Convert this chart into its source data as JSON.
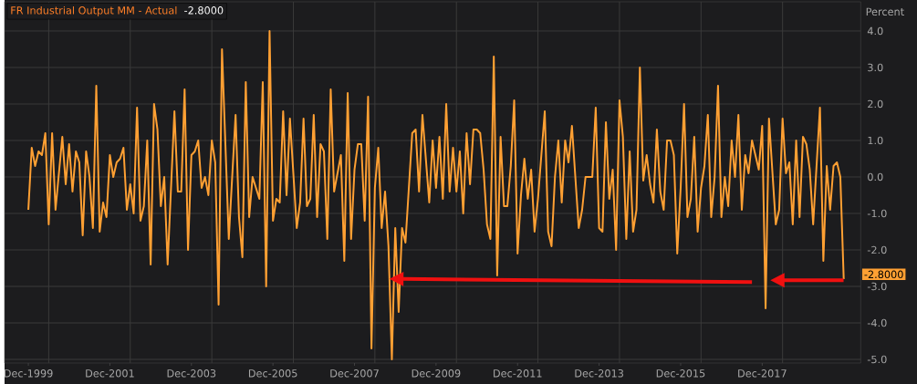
{
  "chart_data": {
    "type": "line",
    "title": "FR Industrial Output MM - Actual",
    "ylabel": "Percent",
    "color": "#ffa033",
    "x": [
      "1999-12",
      "2000-01",
      "2000-02",
      "2000-03",
      "2000-04",
      "2000-05",
      "2000-06",
      "2000-07",
      "2000-08",
      "2000-10",
      "2000-11",
      "2000-12",
      "2001-01",
      "2001-02",
      "2001-03",
      "2001-04",
      "2001-05",
      "2001-06",
      "2001-07",
      "2001-08",
      "2001-09",
      "2001-10",
      "2001-11",
      "2001-12",
      "2002-01",
      "2002-02",
      "2002-03",
      "2002-04",
      "2002-05",
      "2002-06",
      "2002-07",
      "2002-08",
      "2002-09",
      "2002-10",
      "2002-11",
      "2002-12",
      "2003-01",
      "2003-02",
      "2003-03",
      "2003-04",
      "2003-05",
      "2003-07",
      "2003-08",
      "2003-09",
      "2003-10",
      "2003-11",
      "2003-12",
      "2004-01",
      "2004-02",
      "2004-03",
      "2004-04",
      "2004-05",
      "2004-06",
      "2004-07",
      "2004-08",
      "2004-09",
      "2004-11",
      "2005-01",
      "2005-02",
      "2005-03",
      "2005-04",
      "2005-05",
      "2005-06",
      "2005-07",
      "2005-08",
      "2005-09",
      "2005-10",
      "2005-11",
      "2005-12",
      "2006-01",
      "2006-02",
      "2006-03",
      "2006-04",
      "2006-05",
      "2006-07",
      "2006-08",
      "2006-09",
      "2006-10",
      "2006-11",
      "2006-12",
      "2007-01",
      "2007-02",
      "2007-03",
      "2007-04",
      "2007-05",
      "2007-06",
      "2007-08",
      "2007-09",
      "2007-10",
      "2007-11",
      "2007-12",
      "2008-01",
      "2008-02",
      "2008-03",
      "2008-04",
      "2008-05",
      "2008-06",
      "2008-07",
      "2008-08",
      "2008-09",
      "2008-10",
      "2008-11",
      "2008-12",
      "2009-01",
      "2009-02",
      "2009-03",
      "2009-05",
      "2009-06",
      "2009-07",
      "2009-08",
      "2009-10",
      "2009-11",
      "2009-12",
      "2010-01",
      "2010-02",
      "2010-03",
      "2010-04",
      "2010-05",
      "2010-06",
      "2010-07",
      "2010-08",
      "2010-09",
      "2010-10",
      "2010-11",
      "2010-12",
      "2011-01",
      "2011-02",
      "2011-03",
      "2011-04",
      "2011-05",
      "2011-06",
      "2011-07",
      "2011-08",
      "2011-09",
      "2011-10",
      "2011-11",
      "2011-12",
      "2012-01",
      "2012-02",
      "2012-03",
      "2012-04",
      "2012-05",
      "2012-06",
      "2012-08",
      "2012-09",
      "2012-10",
      "2012-11",
      "2012-12",
      "2013-01",
      "2013-02",
      "2013-03",
      "2013-04",
      "2013-06",
      "2013-07",
      "2013-08",
      "2013-09",
      "2013-10",
      "2013-11",
      "2013-12",
      "2014-01",
      "2014-02",
      "2014-03",
      "2014-04",
      "2014-05",
      "2014-06",
      "2014-07",
      "2014-08",
      "2014-09",
      "2014-10",
      "2014-11",
      "2014-12",
      "2015-01",
      "2015-02",
      "2015-03",
      "2015-04",
      "2015-05",
      "2015-06",
      "2015-07",
      "2015-08",
      "2015-09",
      "2015-10",
      "2015-11",
      "2015-12",
      "2016-01",
      "2016-02",
      "2016-03",
      "2016-04",
      "2016-05",
      "2016-06",
      "2016-07",
      "2016-08",
      "2016-09",
      "2016-10",
      "2016-11",
      "2016-12",
      "2017-01",
      "2017-02",
      "2017-03",
      "2017-04",
      "2017-05",
      "2017-06",
      "2017-07",
      "2017-08",
      "2017-09",
      "2017-10",
      "2017-11",
      "2017-12",
      "2018-01",
      "2018-02",
      "2018-04",
      "2018-05",
      "2018-06",
      "2018-07",
      "2018-08",
      "2018-09",
      "2018-10",
      "2018-11",
      "2018-12",
      "2019-01",
      "2019-02",
      "2019-03",
      "2019-05",
      "2019-06",
      "2019-07",
      "2019-08",
      "2019-09",
      "2019-10",
      "2019-11",
      "2019-12"
    ],
    "values": [
      -0.9,
      0.8,
      0.3,
      0.7,
      0.6,
      1.2,
      -1.3,
      1.2,
      -0.9,
      1.1,
      -0.2,
      0.9,
      -0.4,
      0.7,
      0.4,
      -1.6,
      0.7,
      0.0,
      -1.4,
      2.5,
      -1.5,
      -0.7,
      -1.1,
      0.6,
      0.0,
      0.4,
      0.5,
      0.8,
      -0.9,
      -0.2,
      -1.0,
      1.9,
      -1.2,
      -0.8,
      1.0,
      -2.4,
      2.0,
      1.3,
      -0.8,
      0.0,
      -2.4,
      1.8,
      -0.4,
      -0.4,
      2.4,
      -2.0,
      0.6,
      0.7,
      1.0,
      -0.3,
      0.0,
      -0.5,
      1.0,
      0.4,
      -3.5,
      3.5,
      -1.7,
      1.7,
      -1.1,
      -2.2,
      2.6,
      -1.1,
      0.0,
      -0.3,
      -0.6,
      2.6,
      -3.0,
      4.0,
      -1.2,
      -0.6,
      -0.7,
      1.8,
      -0.5,
      1.6,
      -1.4,
      -0.7,
      1.6,
      -0.8,
      -0.6,
      1.7,
      -1.1,
      0.9,
      0.7,
      -1.7,
      2.4,
      -0.4,
      0.6,
      -2.3,
      2.3,
      -1.7,
      0.2,
      0.9,
      0.9,
      -1.2,
      2.2,
      -4.7,
      -0.3,
      0.8,
      -1.4,
      -0.4,
      -1.9,
      -5.0,
      -1.4,
      -3.7,
      -1.4,
      -1.8,
      1.2,
      1.3,
      -0.4,
      1.7,
      -0.7,
      1.0,
      -0.3,
      1.1,
      -0.6,
      2.0,
      -0.4,
      0.8,
      -0.4,
      0.7,
      -1.0,
      1.2,
      -0.2,
      1.3,
      1.3,
      1.2,
      0.2,
      -1.3,
      -1.7,
      3.3,
      -2.7,
      1.1,
      -0.8,
      -0.8,
      0.3,
      2.1,
      -2.1,
      -0.5,
      0.5,
      -0.6,
      0.2,
      -1.5,
      -0.6,
      1.8,
      -1.5,
      -1.9,
      0.0,
      1.0,
      -0.7,
      1.0,
      0.4,
      1.4,
      -1.4,
      -0.9,
      0.0,
      0.0,
      0.0,
      1.9,
      -1.4,
      -1.5,
      1.5,
      -0.6,
      0.2,
      -2.0,
      2.1,
      1.1,
      -1.7,
      0.7,
      -1.5,
      -0.9,
      3.0,
      -0.1,
      0.6,
      -0.2,
      -0.7,
      1.3,
      -0.4,
      -0.9,
      1.0,
      1.0,
      0.6,
      -2.1,
      -0.3,
      2.0,
      -1.1,
      -0.6,
      1.1,
      -1.5,
      -0.3,
      0.3,
      1.7,
      -1.1,
      0.0,
      2.5,
      -1.1,
      0.0,
      -0.8,
      1.0,
      0.0,
      1.7,
      -0.9,
      0.6,
      0.1,
      1.0,
      0.6,
      0.2,
      1.4,
      -3.6,
      1.6,
      -1.3,
      -0.9,
      1.6,
      0.1,
      0.4,
      -1.3,
      1.0,
      -1.1,
      1.1,
      0.9,
      0.2,
      -1.3,
      1.9,
      -2.3,
      0.3,
      -0.9,
      0.3,
      0.4,
      0.0,
      -2.8
    ],
    "xlim": [
      "1999-05",
      "2020-05"
    ],
    "ylim": [
      -5.1,
      4.8
    ],
    "xticks": [
      {
        "value": "1999-12",
        "label": "Dec-1999"
      },
      {
        "value": "2001-12",
        "label": "Dec-2001"
      },
      {
        "value": "2003-12",
        "label": "Dec-2003"
      },
      {
        "value": "2005-12",
        "label": "Dec-2005"
      },
      {
        "value": "2007-12",
        "label": "Dec-2007"
      },
      {
        "value": "2009-12",
        "label": "Dec-2009"
      },
      {
        "value": "2011-12",
        "label": "Dec-2011"
      },
      {
        "value": "2013-12",
        "label": "Dec-2013"
      },
      {
        "value": "2015-12",
        "label": "Dec-2015"
      },
      {
        "value": "2017-12",
        "label": "Dec-2017"
      },
      {
        "value": "2000-06",
        "label": null
      },
      {
        "value": "2002-06",
        "label": null
      },
      {
        "value": "2004-06",
        "label": null
      },
      {
        "value": "2006-06",
        "label": null
      },
      {
        "value": "2008-06",
        "label": null
      },
      {
        "value": "2010-06",
        "label": null
      },
      {
        "value": "2012-06",
        "label": null
      },
      {
        "value": "2014-06",
        "label": null
      },
      {
        "value": "2016-06",
        "label": null
      },
      {
        "value": "2018-06",
        "label": null
      }
    ],
    "yticks": [
      {
        "value": -5,
        "label": "-5.0"
      },
      {
        "value": -4,
        "label": "-4.0"
      },
      {
        "value": -3,
        "label": "-3.0"
      },
      {
        "value": -2,
        "label": "-2.0"
      },
      {
        "value": -1,
        "label": "-1.0"
      },
      {
        "value": 0,
        "label": "0.0"
      },
      {
        "value": 1,
        "label": "1.0"
      },
      {
        "value": 2,
        "label": "2.0"
      },
      {
        "value": 3,
        "label": "3.0"
      },
      {
        "value": 4,
        "label": "4.0"
      }
    ],
    "grid": true,
    "annotations": [
      "-2.8000",
      {
        "text": "-2.8000",
        "x": "2019-12",
        "y": -2.8
      }
    ]
  }
}
